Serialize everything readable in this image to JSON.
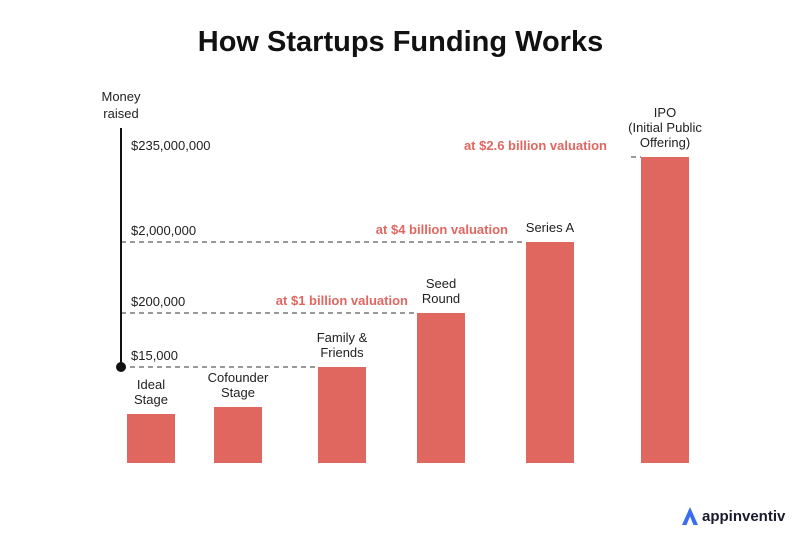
{
  "title": "How Startups Funding Works",
  "brand": {
    "name": "appinventiv",
    "icon": "appinventiv-logo-icon",
    "icon_color": "#3a6df0"
  },
  "colors": {
    "bar": "#df6760",
    "valuation_text": "#df6760",
    "axis": "#111111",
    "text": "#222222"
  },
  "chart_data": {
    "type": "bar",
    "title": "How Startups Funding Works",
    "ylabel": "Money raised",
    "y_scale": "non-linear (stepped levels)",
    "y_levels": [
      "$15,000",
      "$200,000",
      "$2,000,000",
      "$235,000,000"
    ],
    "categories": [
      "Ideal Stage",
      "Cofounder Stage",
      "Family & Friends",
      "Seed Round",
      "Series A",
      "IPO (Initial Public Offering)"
    ],
    "category_lines": [
      [
        "Ideal",
        "Stage"
      ],
      [
        "Cofounder",
        "Stage"
      ],
      [
        "Family &",
        "Friends"
      ],
      [
        "Seed",
        "Round"
      ],
      [
        "Series A"
      ],
      [
        "IPO",
        "(Initial Public",
        "Offering)"
      ]
    ],
    "values": [
      null,
      null,
      15000,
      200000,
      2000000,
      235000000
    ],
    "annotations": [
      {
        "text": "at $1 billion valuation",
        "category": "Seed Round"
      },
      {
        "text": "at $4 billion valuation",
        "category": "Series A"
      },
      {
        "text": "at $2.6 billion valuation",
        "category": "IPO (Initial Public Offering)"
      }
    ],
    "grid": "dashed reference lines at each money level",
    "legend": "none"
  }
}
